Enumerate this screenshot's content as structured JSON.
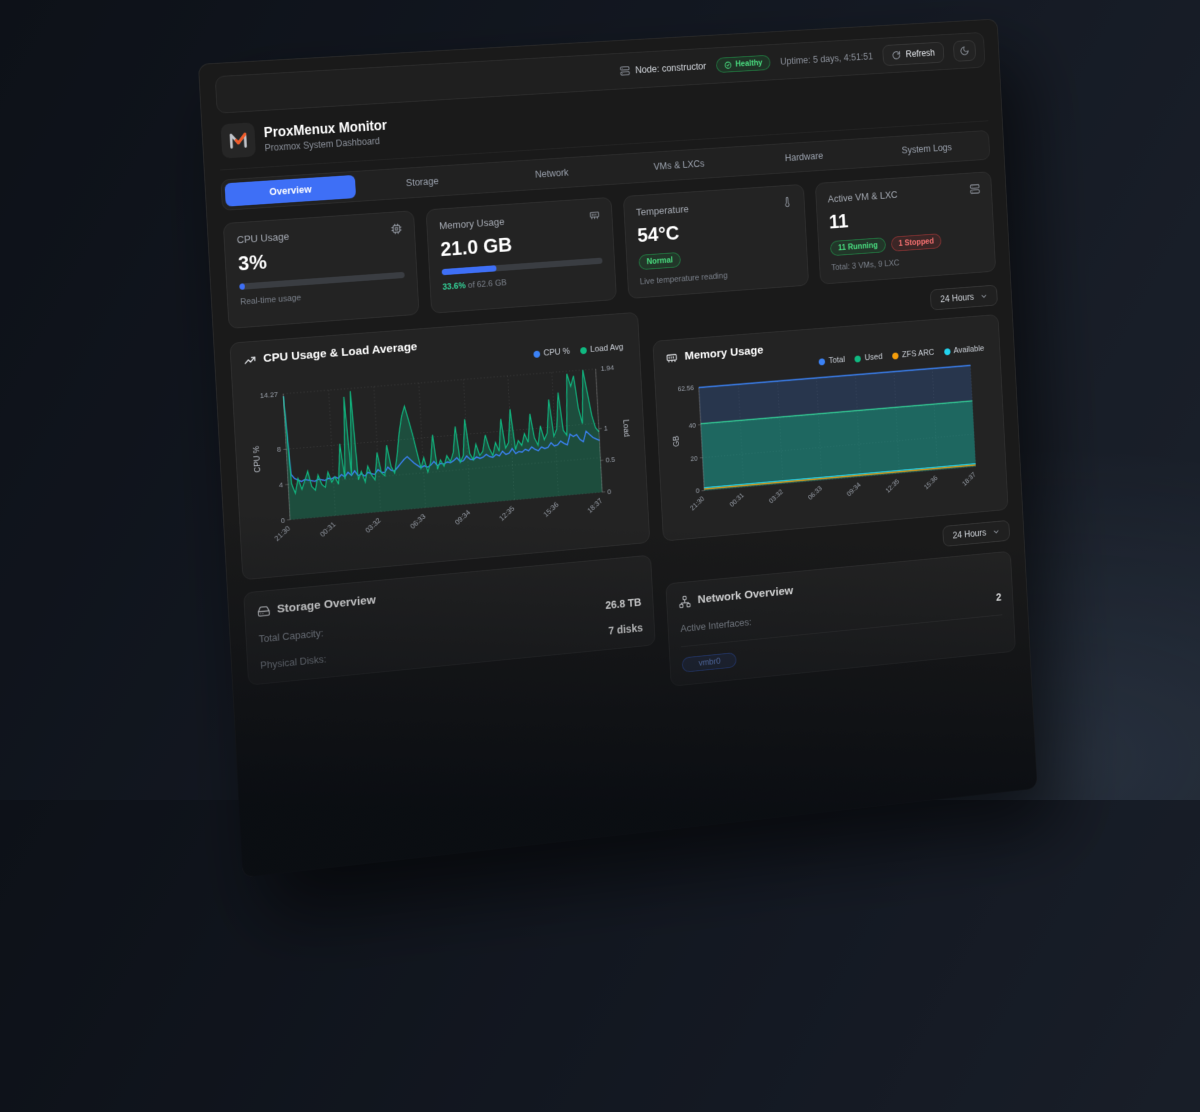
{
  "topbar": {
    "node_label": "Node: constructor",
    "health_badge": "Healthy",
    "uptime": "Uptime: 5 days, 4:51:51",
    "refresh_label": "Refresh"
  },
  "header": {
    "title": "ProxMenux Monitor",
    "subtitle": "Proxmox System Dashboard"
  },
  "tabs": {
    "items": [
      {
        "label": "Overview",
        "active": true
      },
      {
        "label": "Storage",
        "active": false
      },
      {
        "label": "Network",
        "active": false
      },
      {
        "label": "VMs & LXCs",
        "active": false
      },
      {
        "label": "Hardware",
        "active": false
      },
      {
        "label": "System Logs",
        "active": false
      }
    ]
  },
  "stats": {
    "cpu": {
      "label": "CPU Usage",
      "value": "3%",
      "percent": 3,
      "caption": "Real-time usage"
    },
    "memory": {
      "label": "Memory Usage",
      "value": "21.0 GB",
      "percent": 33.6,
      "caption_pct": "33.6%",
      "caption_rest": " of 62.6 GB"
    },
    "temperature": {
      "label": "Temperature",
      "value": "54°C",
      "badge": "Normal",
      "caption": "Live temperature reading"
    },
    "vms": {
      "label": "Active VM & LXC",
      "value": "11",
      "running_badge": "11 Running",
      "stopped_badge": "1 Stopped",
      "caption": "Total: 3 VMs, 9 LXC"
    }
  },
  "toolbar": {
    "timeframe": "24 Hours"
  },
  "chart_data": [
    {
      "type": "line",
      "title": "CPU Usage & Load Average",
      "legend": [
        {
          "label": "CPU %",
          "color": "#3b82f6"
        },
        {
          "label": "Load Avg",
          "color": "#10b981"
        }
      ],
      "x_ticks": [
        "21:30",
        "00:31",
        "03:32",
        "06:33",
        "09:34",
        "12:35",
        "15:36",
        "18:37"
      ],
      "y_left": {
        "label": "CPU %",
        "ticks": [
          0,
          4,
          8
        ],
        "max": 14.27,
        "max_label": "14.27"
      },
      "y_right": {
        "label": "Load",
        "ticks": [
          0,
          0.5,
          1
        ],
        "max": 1.94,
        "max_label": "1.94"
      },
      "series": [
        {
          "name": "CPU %",
          "axis": "left",
          "color": "#3b82f6",
          "values": [
            14.0,
            5.1,
            4.6,
            4.4,
            4.2,
            4.4,
            4.3,
            4.2,
            4.1,
            4.3,
            4.2,
            4.1,
            4.3,
            4.2,
            4.4,
            4.2,
            4.6,
            4.3,
            4.8,
            4.4,
            4.9,
            4.3,
            4.5,
            4.2,
            4.6,
            4.4,
            4.3,
            4.8,
            4.5,
            4.4,
            5.0,
            4.6,
            4.5,
            4.9,
            5.3,
            5.7,
            6.0,
            5.6,
            5.2,
            4.9,
            4.6,
            4.8,
            4.6,
            4.8,
            5.2,
            4.7,
            4.9,
            4.8,
            5.0,
            4.9,
            5.1,
            5.4,
            4.9,
            5.0,
            5.5,
            5.1,
            5.0,
            5.3,
            5.1,
            5.2,
            5.5,
            5.2,
            5.1,
            5.4,
            5.2,
            5.7,
            5.3,
            5.4,
            5.9,
            5.3,
            5.5,
            5.4,
            5.7,
            5.5,
            5.9,
            5.6,
            5.4,
            5.8,
            5.6,
            5.7,
            6.2,
            5.8,
            5.9,
            6.3,
            6.0,
            5.8,
            7.0,
            6.7,
            6.9,
            6.3,
            6.0,
            7.2,
            6.8,
            6.4,
            6.2,
            6.0
          ]
        },
        {
          "name": "Load Avg",
          "axis": "right",
          "color": "#10b981",
          "fill": "rgba(16,185,129,0.28)",
          "values": [
            1.9,
            0.55,
            0.4,
            0.62,
            0.45,
            0.58,
            0.72,
            0.48,
            0.42,
            0.65,
            0.5,
            0.45,
            0.68,
            0.52,
            0.6,
            0.48,
            1.1,
            0.55,
            1.82,
            0.6,
            1.9,
            0.52,
            0.65,
            0.48,
            0.72,
            0.58,
            0.5,
            0.92,
            0.6,
            0.55,
            1.02,
            0.68,
            0.58,
            0.85,
            1.2,
            1.45,
            1.6,
            1.38,
            1.15,
            0.88,
            0.62,
            0.78,
            0.55,
            0.7,
            1.12,
            0.58,
            0.72,
            0.62,
            0.78,
            0.68,
            0.82,
            1.22,
            0.66,
            0.76,
            1.32,
            0.78,
            0.68,
            0.92,
            0.74,
            0.8,
            1.05,
            0.84,
            0.72,
            0.92,
            0.78,
            1.28,
            0.82,
            0.9,
            1.42,
            0.78,
            0.92,
            0.84,
            1.02,
            0.88,
            1.32,
            0.94,
            0.82,
            1.12,
            0.9,
            1.0,
            1.52,
            0.94,
            1.05,
            1.62,
            1.02,
            0.94,
            1.9,
            1.7,
            1.86,
            1.35,
            1.1,
            1.94,
            1.58,
            1.22,
            1.02,
            0.95
          ]
        }
      ]
    },
    {
      "type": "area",
      "title": "Memory Usage",
      "legend": [
        {
          "label": "Total",
          "color": "#3b82f6"
        },
        {
          "label": "Used",
          "color": "#10b981"
        },
        {
          "label": "ZFS ARC",
          "color": "#f59e0b"
        },
        {
          "label": "Available",
          "color": "#22d3ee"
        }
      ],
      "x_ticks": [
        "21:30",
        "00:31",
        "03:32",
        "06:33",
        "09:34",
        "12:35",
        "15:36",
        "18:37"
      ],
      "y": {
        "label": "GB",
        "ticks": [
          0,
          20,
          40
        ],
        "max": 62.56,
        "max_label": "62.56"
      },
      "series": [
        {
          "name": "Total",
          "color": "#3b82f6",
          "fill": "rgba(59,130,246,0.20)",
          "values": [
            62.56,
            62.56,
            62.56,
            62.56,
            62.56,
            62.56,
            62.56,
            62.56
          ]
        },
        {
          "name": "Used",
          "color": "#34d399",
          "fill": "rgba(16,185,129,0.38)",
          "values": [
            40.6,
            40.6,
            40.6,
            40.6,
            40.6,
            40.6,
            40.6,
            40.6
          ]
        },
        {
          "name": "Available",
          "color": "#22d3ee",
          "values": [
            1.8,
            1.8,
            1.8,
            1.8,
            1.8,
            1.8,
            1.8,
            1.8
          ]
        },
        {
          "name": "ZFS ARC",
          "color": "#f59e0b",
          "values": [
            0.9,
            0.9,
            0.9,
            0.9,
            0.9,
            0.9,
            0.9,
            0.9
          ]
        }
      ]
    }
  ],
  "storage": {
    "title": "Storage Overview",
    "rows": [
      {
        "label": "Total Capacity:",
        "value": "26.8 TB"
      },
      {
        "label": "Physical Disks:",
        "value": "7 disks"
      }
    ]
  },
  "network": {
    "title": "Network Overview",
    "rows": [
      {
        "label": "Active Interfaces:",
        "value": "2"
      }
    ],
    "badge": "vmbr0"
  },
  "colors": {
    "accent": "#3e6ff6",
    "green": "#22c55e",
    "red": "#ef4444",
    "orange": "#f59e0b",
    "cyan": "#22d3ee"
  }
}
